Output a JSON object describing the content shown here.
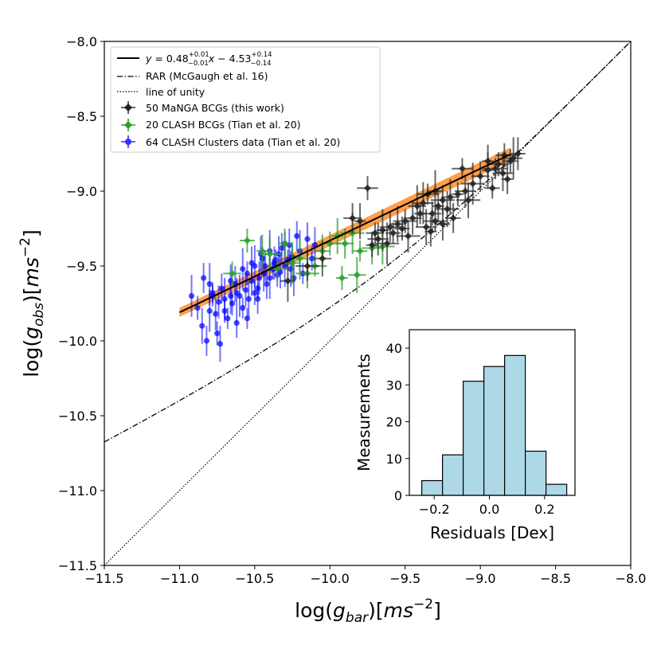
{
  "chart_data": [
    {
      "type": "scatter",
      "title": "",
      "xlabel": "log(g_bar)[ms^-2]",
      "ylabel": "log(g_obs)[ms^-2]",
      "xlabel_parts": {
        "pre": "log(",
        "var": "g",
        "sub": "bar",
        "mid": ")[",
        "unit": "ms",
        "sup": "−2",
        "post": "]"
      },
      "ylabel_parts": {
        "pre": "log(",
        "var": "g",
        "sub": "obs",
        "mid": ")[",
        "unit": "ms",
        "sup": "−2",
        "post": "]"
      },
      "xlim": [
        -11.5,
        -8.0
      ],
      "ylim": [
        -11.5,
        -8.0
      ],
      "xticks": [
        -11.5,
        -11.0,
        -10.5,
        -10.0,
        -9.5,
        -9.0,
        -8.5,
        -8.0
      ],
      "yticks": [
        -11.5,
        -11.0,
        -10.5,
        -10.0,
        -9.5,
        -9.0,
        -8.5,
        -8.0
      ],
      "xtick_labels": [
        "−11.5",
        "−11.0",
        "−10.5",
        "−10.0",
        "−9.5",
        "−9.0",
        "−8.5",
        "−8.0"
      ],
      "ytick_labels": [
        "−11.5",
        "−11.0",
        "−10.5",
        "−10.0",
        "−9.5",
        "−9.0",
        "−8.5",
        "−8.0"
      ],
      "grid": false,
      "legend_position": "top-left",
      "fit_line": {
        "label": "y = 0.48^{+0.01}_{−0.01} x − 4.53^{+0.14}_{−0.14}",
        "label_parts": {
          "y": "y",
          "eq": " = 0.48",
          "sup1": "+0.01",
          "sub1": "−0.01",
          "x": "x",
          "mid": " − 4.53",
          "sup2": "+0.14",
          "sub2": "−0.14"
        },
        "slope": 0.48,
        "intercept": -4.53,
        "x_range": [
          -11.0,
          -8.8
        ],
        "band_color": "#ff7f0e",
        "color": "#000000"
      },
      "rar_curve": {
        "label": "RAR (McGaugh et al. 16)",
        "g_dagger_log": -9.92,
        "style": "dashdot"
      },
      "unity_line": {
        "label": "line of unity",
        "style": "dotted"
      },
      "series": [
        {
          "name": "50 MaNGA BCGs (this work)",
          "color": "#000000",
          "marker": "diamond",
          "points": [
            [
              -8.8,
              -8.8
            ],
            [
              -8.85,
              -8.88
            ],
            [
              -8.82,
              -8.92
            ],
            [
              -8.78,
              -8.78
            ],
            [
              -8.9,
              -8.85
            ],
            [
              -8.75,
              -8.75
            ],
            [
              -8.88,
              -8.82
            ],
            [
              -8.95,
              -8.86
            ],
            [
              -9.0,
              -8.9
            ],
            [
              -9.05,
              -8.95
            ],
            [
              -8.92,
              -8.98
            ],
            [
              -9.1,
              -9.0
            ],
            [
              -9.15,
              -9.02
            ],
            [
              -9.2,
              -9.04
            ],
            [
              -9.25,
              -9.06
            ],
            [
              -9.3,
              -9.0
            ],
            [
              -9.35,
              -9.02
            ],
            [
              -9.28,
              -9.1
            ],
            [
              -9.32,
              -9.15
            ],
            [
              -9.22,
              -9.12
            ],
            [
              -9.18,
              -9.18
            ],
            [
              -9.38,
              -9.08
            ],
            [
              -9.4,
              -9.15
            ],
            [
              -9.45,
              -9.18
            ],
            [
              -9.5,
              -9.2
            ],
            [
              -9.55,
              -9.22
            ],
            [
              -9.6,
              -9.24
            ],
            [
              -9.65,
              -9.26
            ],
            [
              -9.7,
              -9.28
            ],
            [
              -9.48,
              -9.3
            ],
            [
              -9.52,
              -9.25
            ],
            [
              -9.36,
              -9.24
            ],
            [
              -9.33,
              -9.27
            ],
            [
              -9.42,
              -9.1
            ],
            [
              -9.3,
              -9.2
            ],
            [
              -9.25,
              -9.22
            ],
            [
              -9.75,
              -8.98
            ],
            [
              -9.8,
              -9.2
            ],
            [
              -9.85,
              -9.18
            ],
            [
              -9.62,
              -9.35
            ],
            [
              -9.58,
              -9.28
            ],
            [
              -9.68,
              -9.32
            ],
            [
              -9.72,
              -9.36
            ],
            [
              -10.05,
              -9.45
            ],
            [
              -10.15,
              -9.5
            ],
            [
              -10.28,
              -9.6
            ],
            [
              -9.12,
              -8.85
            ],
            [
              -8.95,
              -8.8
            ],
            [
              -8.84,
              -8.76
            ],
            [
              -9.08,
              -9.06
            ]
          ]
        },
        {
          "name": "20 CLASH BCGs (Tian et al. 20)",
          "color": "#2ca02c",
          "marker": "plus",
          "points": [
            [
              -10.55,
              -9.33
            ],
            [
              -10.4,
              -9.42
            ],
            [
              -10.3,
              -9.35
            ],
            [
              -10.2,
              -9.45
            ],
            [
              -10.1,
              -9.5
            ],
            [
              -10.05,
              -9.4
            ],
            [
              -10.0,
              -9.35
            ],
            [
              -9.95,
              -9.3
            ],
            [
              -9.9,
              -9.35
            ],
            [
              -9.85,
              -9.28
            ],
            [
              -9.8,
              -9.4
            ],
            [
              -9.72,
              -9.38
            ],
            [
              -9.92,
              -9.58
            ],
            [
              -9.82,
              -9.56
            ],
            [
              -10.15,
              -9.55
            ],
            [
              -10.25,
              -9.48
            ],
            [
              -10.35,
              -9.52
            ],
            [
              -10.45,
              -9.4
            ],
            [
              -10.65,
              -9.55
            ],
            [
              -9.65,
              -9.37
            ]
          ]
        },
        {
          "name": "64 CLASH Clusters data (Tian et al. 20)",
          "color": "#0000ff",
          "marker": "circle",
          "points": [
            [
              -10.88,
              -9.78
            ],
            [
              -10.85,
              -9.9
            ],
            [
              -10.82,
              -10.0
            ],
            [
              -10.8,
              -9.8
            ],
            [
              -10.78,
              -9.7
            ],
            [
              -10.76,
              -9.82
            ],
            [
              -10.75,
              -9.95
            ],
            [
              -10.73,
              -10.02
            ],
            [
              -10.72,
              -9.65
            ],
            [
              -10.7,
              -9.72
            ],
            [
              -10.68,
              -9.85
            ],
            [
              -10.66,
              -9.6
            ],
            [
              -10.65,
              -9.75
            ],
            [
              -10.63,
              -9.62
            ],
            [
              -10.62,
              -9.88
            ],
            [
              -10.6,
              -9.7
            ],
            [
              -10.58,
              -9.78
            ],
            [
              -10.56,
              -9.66
            ],
            [
              -10.55,
              -9.55
            ],
            [
              -10.54,
              -9.72
            ],
            [
              -10.52,
              -9.6
            ],
            [
              -10.5,
              -9.5
            ],
            [
              -10.48,
              -9.65
            ],
            [
              -10.47,
              -9.58
            ],
            [
              -10.45,
              -9.45
            ],
            [
              -10.44,
              -9.55
            ],
            [
              -10.42,
              -9.62
            ],
            [
              -10.4,
              -9.4
            ],
            [
              -10.38,
              -9.52
            ],
            [
              -10.37,
              -9.48
            ],
            [
              -10.35,
              -9.56
            ],
            [
              -10.34,
              -9.42
            ],
            [
              -10.32,
              -9.38
            ],
            [
              -10.3,
              -9.5
            ],
            [
              -10.28,
              -9.46
            ],
            [
              -10.27,
              -9.36
            ],
            [
              -10.25,
              -9.44
            ],
            [
              -10.24,
              -9.58
            ],
            [
              -10.22,
              -9.3
            ],
            [
              -10.2,
              -9.4
            ],
            [
              -10.18,
              -9.55
            ],
            [
              -10.15,
              -9.32
            ],
            [
              -10.12,
              -9.45
            ],
            [
              -10.1,
              -9.36
            ],
            [
              -10.84,
              -9.58
            ],
            [
              -10.8,
              -9.62
            ],
            [
              -10.78,
              -9.68
            ],
            [
              -10.74,
              -9.74
            ],
            [
              -10.7,
              -9.8
            ],
            [
              -10.66,
              -9.7
            ],
            [
              -10.62,
              -9.68
            ],
            [
              -10.58,
              -9.52
            ],
            [
              -10.55,
              -9.85
            ],
            [
              -10.52,
              -9.48
            ],
            [
              -10.5,
              -9.68
            ],
            [
              -10.46,
              -9.42
            ],
            [
              -10.43,
              -9.5
            ],
            [
              -10.4,
              -9.58
            ],
            [
              -10.36,
              -9.46
            ],
            [
              -10.33,
              -9.54
            ],
            [
              -10.3,
              -9.35
            ],
            [
              -10.26,
              -9.52
            ],
            [
              -10.48,
              -9.72
            ],
            [
              -10.92,
              -9.7
            ]
          ]
        }
      ]
    },
    {
      "type": "bar",
      "title": "",
      "xlabel": "Residuals [Dex]",
      "ylabel": "Measurements",
      "xlim": [
        -0.29,
        0.31
      ],
      "ylim": [
        0,
        45
      ],
      "xticks": [
        -0.2,
        0.0,
        0.2
      ],
      "xtick_labels": [
        "−0.2",
        "0.0",
        "0.2"
      ],
      "yticks": [
        0,
        10,
        20,
        30,
        40
      ],
      "ytick_labels": [
        "0",
        "10",
        "20",
        "30",
        "40"
      ],
      "bin_edges": [
        -0.245,
        -0.17,
        -0.095,
        -0.02,
        0.055,
        0.13,
        0.205,
        0.28
      ],
      "values": [
        4,
        11,
        31,
        35,
        38,
        12,
        3
      ],
      "color": "#add8e6"
    }
  ]
}
